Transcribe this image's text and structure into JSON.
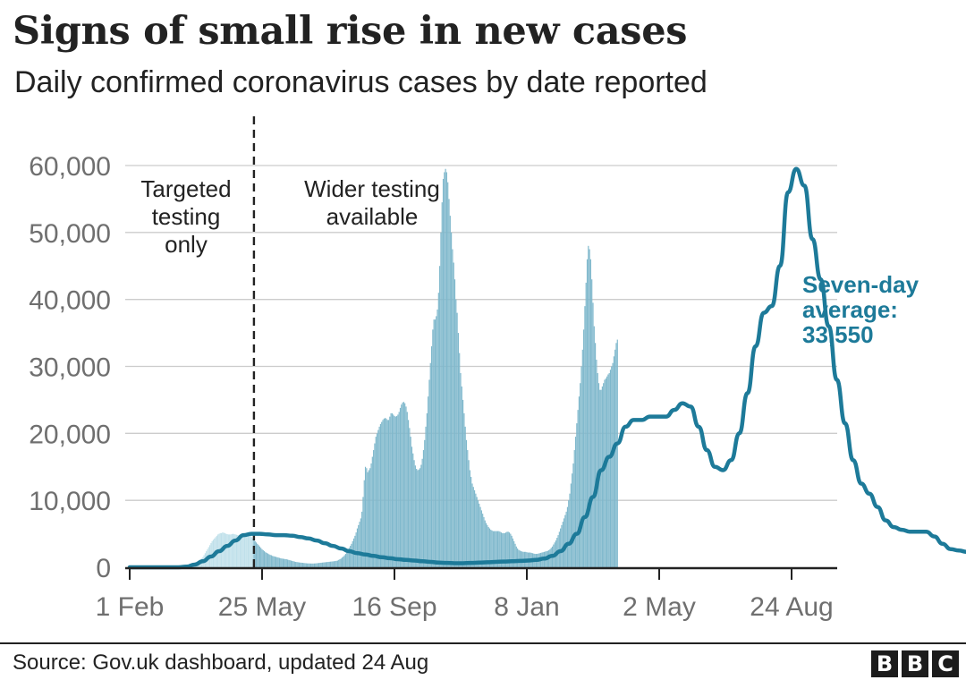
{
  "title": "Signs of small rise in new cases",
  "subtitle": "Daily confirmed coronavirus cases by date reported",
  "footer": {
    "source": "Source: Gov.uk dashboard, updated 24 Aug",
    "logo_letters": [
      "B",
      "B",
      "C"
    ]
  },
  "colors": {
    "bars": "#7fb8cc",
    "bars_early": "#bfe0ea",
    "line": "#1d7a99",
    "grid": "#cccccc",
    "axis": "#222222",
    "tick_text": "#6f6f6f"
  },
  "chart_data": {
    "type": "bar",
    "title": "Signs of small rise in new cases",
    "subtitle": "Daily confirmed coronavirus cases by date reported",
    "xlabel": "",
    "ylabel": "",
    "ylim": [
      0,
      60000
    ],
    "y_ticks": [
      0,
      10000,
      20000,
      30000,
      40000,
      50000,
      60000
    ],
    "y_tick_labels": [
      "0",
      "10,000",
      "20,000",
      "30,000",
      "40,000",
      "50,000",
      "60,000"
    ],
    "x_range": [
      "2020-02-01",
      "2021-08-24"
    ],
    "x_ticks": [
      {
        "date": "2020-02-01",
        "label": "1 Feb"
      },
      {
        "date": "2020-05-25",
        "label": "25 May"
      },
      {
        "date": "2020-09-16",
        "label": "16 Sep"
      },
      {
        "date": "2021-01-08",
        "label": "8 Jan"
      },
      {
        "date": "2021-05-02",
        "label": "2 May"
      },
      {
        "date": "2021-08-24",
        "label": "24 Aug"
      }
    ],
    "grid": true,
    "annotations": {
      "divider_date": "2020-05-18",
      "left_label": [
        "Targeted",
        "testing",
        "only"
      ],
      "right_label": [
        "Wider testing",
        "available"
      ],
      "end_label": [
        "Seven-day",
        "average:",
        "33,550"
      ]
    },
    "series": [
      {
        "name": "Daily confirmed cases",
        "kind": "bars",
        "period": "daily",
        "values": [
          0,
          0,
          0,
          0,
          0,
          0,
          0,
          0,
          0,
          0,
          0,
          0,
          0,
          0,
          0,
          0,
          0,
          0,
          0,
          0,
          0,
          0,
          0,
          0,
          0,
          0,
          0,
          0,
          0,
          0,
          0,
          0,
          0,
          0,
          0,
          0,
          0,
          0,
          0,
          0,
          0,
          35,
          57,
          70,
          95,
          125,
          165,
          200,
          230,
          280,
          320,
          370,
          410,
          470,
          530,
          600,
          680,
          760,
          850,
          950,
          1050,
          1150,
          1300,
          1500,
          1800,
          2100,
          2400,
          2700,
          3000,
          3300,
          3600,
          3900,
          4100,
          4300,
          4500,
          4700,
          4900,
          5000,
          5100,
          5100,
          5200,
          5150,
          5100,
          5000,
          4950,
          4900,
          4900,
          4900,
          4950,
          5000,
          4950,
          4900,
          4850,
          4800,
          4750,
          4700,
          4650,
          4600,
          4700,
          4800,
          4900,
          5000,
          4950,
          4850,
          4700,
          4500,
          4300,
          4100,
          3900,
          3700,
          3500,
          3300,
          3100,
          2900,
          2700,
          2550,
          2400,
          2250,
          2150,
          2050,
          1950,
          1850,
          1800,
          1700,
          1650,
          1600,
          1550,
          1500,
          1450,
          1400,
          1350,
          1300,
          1280,
          1250,
          1220,
          1200,
          1150,
          1100,
          1050,
          1000,
          950,
          900,
          850,
          800,
          780,
          750,
          720,
          700,
          680,
          660,
          640,
          620,
          600,
          580,
          580,
          570,
          560,
          560,
          560,
          570,
          580,
          600,
          620,
          640,
          660,
          680,
          700,
          720,
          740,
          760,
          780,
          800,
          820,
          840,
          860,
          880,
          900,
          930,
          960,
          1000,
          1100,
          1200,
          1300,
          1450,
          1600,
          1800,
          2000,
          2300,
          2600,
          2900,
          3200,
          3500,
          3900,
          4300,
          4700,
          5200,
          5800,
          6300,
          6800,
          7300,
          8300,
          10500,
          13000,
          15000,
          14800,
          14200,
          14500,
          14800,
          15500,
          16500,
          17500,
          18500,
          19500,
          20000,
          20500,
          21000,
          21400,
          21700,
          22000,
          22200,
          22300,
          22200,
          22000,
          22000,
          22500,
          23000,
          23000,
          22800,
          22600,
          22500,
          22600,
          22800,
          23200,
          23800,
          24300,
          24600,
          24700,
          24500,
          24000,
          23200,
          22000,
          20800,
          19500,
          18000,
          17000,
          16000,
          15200,
          14700,
          14500,
          14600,
          14800,
          15300,
          16200,
          17500,
          19000,
          21000,
          23000,
          25500,
          28000,
          30500,
          33000,
          35500,
          37000,
          37000,
          37500,
          38500,
          41000,
          45000,
          50000,
          54500,
          58000,
          59000,
          59500,
          59000,
          57500,
          55000,
          52500,
          50000,
          47500,
          45500,
          43000,
          40000,
          38000,
          35000,
          32000,
          29000,
          27000,
          25000,
          23000,
          21000,
          19000,
          17500,
          16000,
          14500,
          13500,
          12500,
          12000,
          11500,
          11000,
          10500,
          10000,
          9500,
          9000,
          8500,
          8000,
          7500,
          7000,
          6600,
          6300,
          6000,
          5800,
          5600,
          5500,
          5400,
          5400,
          5400,
          5400,
          5400,
          5400,
          5300,
          5200,
          5100,
          5100,
          5100,
          5200,
          5300,
          5300,
          5200,
          5000,
          4700,
          4300,
          3900,
          3500,
          3100,
          2800,
          2600,
          2500,
          2400,
          2350,
          2300,
          2300,
          2300,
          2250,
          2200,
          2200,
          2200,
          2150,
          2100,
          2050,
          2000,
          2000,
          2000,
          2050,
          2100,
          2150,
          2200,
          2250,
          2300,
          2350,
          2400,
          2450,
          2550,
          2700,
          2900,
          3100,
          3400,
          3700,
          4000,
          4400,
          4800,
          5300,
          5800,
          6300,
          6800,
          7300,
          7800,
          8300,
          9000,
          10000,
          11000,
          12500,
          14000,
          15500,
          17500,
          19500,
          21500,
          23500,
          25500,
          27500,
          30000,
          32500,
          35500,
          39000,
          42500,
          46000,
          48000,
          47500,
          46000,
          43000,
          39500,
          36000,
          33500,
          31000,
          29000,
          27500,
          26500,
          26500,
          27000,
          27500,
          28000,
          28200,
          28500,
          28800,
          29000,
          29500,
          30000,
          30500,
          31500,
          32500,
          33500,
          34000
        ]
      },
      {
        "name": "Seven-day average",
        "kind": "line",
        "period": "weekly",
        "start_date": "2020-02-01",
        "values": [
          0,
          0,
          0,
          0,
          0,
          0,
          0,
          100,
          400,
          900,
          1600,
          2400,
          3200,
          4000,
          4800,
          5000,
          5000,
          4900,
          4800,
          4800,
          4700,
          4500,
          4300,
          4000,
          3600,
          3200,
          2800,
          2400,
          2100,
          1900,
          1700,
          1500,
          1350,
          1200,
          1100,
          1000,
          900,
          800,
          700,
          650,
          600,
          600,
          650,
          700,
          750,
          800,
          850,
          900,
          950,
          1000,
          1100,
          1300,
          1700,
          2400,
          3500,
          5000,
          7500,
          10500,
          14500,
          16500,
          18500,
          21000,
          22000,
          22000,
          22500,
          22500,
          22500,
          23500,
          24500,
          24000,
          21000,
          17500,
          15000,
          14500,
          16000,
          20000,
          26000,
          33000,
          38000,
          39000,
          45000,
          56000,
          59500,
          57000,
          49000,
          43000,
          36000,
          28000,
          21500,
          16000,
          12500,
          11000,
          9000,
          7000,
          6000,
          5600,
          5300,
          5300,
          5300,
          4600,
          3500,
          2700,
          2500,
          2300,
          2250,
          2100,
          2000,
          2100,
          2300,
          2600,
          3200,
          4200,
          5500,
          7100,
          9200,
          12500,
          16500,
          21500,
          27000,
          32000,
          41000,
          47500,
          44000,
          37000,
          30000,
          26500,
          27000,
          28200,
          29000,
          30000,
          33550
        ]
      }
    ]
  }
}
